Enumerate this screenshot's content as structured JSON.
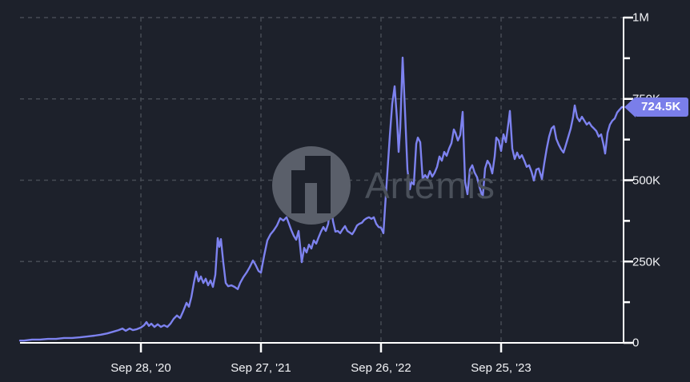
{
  "chart": {
    "watermark": {
      "brand": "Artemis"
    },
    "current_value_label": "724.5K",
    "colors": {
      "background": "#1d212b",
      "line": "#7d82ef",
      "badge": "#7a7eea",
      "grid": "#464b54",
      "axis": "#ffffff",
      "label_text": "#f2f3f6",
      "watermark_gray": "#5a5f6a"
    },
    "y_axis": {
      "side": "right",
      "ticks": [
        {
          "label": "1M",
          "v": 1000
        },
        {
          "label": "750K",
          "v": 750
        },
        {
          "label": "500K",
          "v": 500
        },
        {
          "label": "250K",
          "v": 250
        },
        {
          "label": "0",
          "v": 0
        }
      ],
      "minor_v": [
        875,
        625,
        375,
        125
      ]
    },
    "x_axis": {
      "ticks": [
        {
          "label": "Sep 28, '20",
          "t": 0.2003
        },
        {
          "label": "Sep 27, '21",
          "t": 0.3992
        },
        {
          "label": "Sep 26, '22",
          "t": 0.5981
        },
        {
          "label": "Sep 25, '23",
          "t": 0.7971
        }
      ]
    }
  },
  "chart_data": {
    "type": "line",
    "title": "",
    "unit": "K",
    "ylim": [
      0,
      1000
    ],
    "grid": true,
    "y_axis_side": "right",
    "x_tick_labels": [
      "Sep 28, '20",
      "Sep 27, '21",
      "Sep 26, '22",
      "Sep 25, '23"
    ],
    "last_value_k": 724.5,
    "series": [
      {
        "name": "value",
        "points": [
          [
            0,
            7
          ],
          [
            0.0066,
            7
          ],
          [
            0.0199,
            10
          ],
          [
            0.0332,
            10
          ],
          [
            0.0464,
            12
          ],
          [
            0.0597,
            12
          ],
          [
            0.0729,
            15
          ],
          [
            0.0862,
            15
          ],
          [
            0.0995,
            17
          ],
          [
            0.1127,
            20
          ],
          [
            0.1233,
            22
          ],
          [
            0.134,
            25
          ],
          [
            0.1446,
            29
          ],
          [
            0.1538,
            34
          ],
          [
            0.1631,
            39
          ],
          [
            0.1698,
            44
          ],
          [
            0.1751,
            37
          ],
          [
            0.1817,
            44
          ],
          [
            0.187,
            39
          ],
          [
            0.1936,
            42
          ],
          [
            0.2003,
            47
          ],
          [
            0.2056,
            54
          ],
          [
            0.2095,
            64
          ],
          [
            0.2135,
            52
          ],
          [
            0.2175,
            59
          ],
          [
            0.2228,
            49
          ],
          [
            0.2281,
            57
          ],
          [
            0.2334,
            49
          ],
          [
            0.2387,
            54
          ],
          [
            0.244,
            49
          ],
          [
            0.2493,
            59
          ],
          [
            0.2546,
            74
          ],
          [
            0.2599,
            84
          ],
          [
            0.2653,
            76
          ],
          [
            0.2706,
            98
          ],
          [
            0.2759,
            123
          ],
          [
            0.2798,
            111
          ],
          [
            0.2838,
            140
          ],
          [
            0.2878,
            182
          ],
          [
            0.2918,
            219
          ],
          [
            0.2957,
            189
          ],
          [
            0.2997,
            204
          ],
          [
            0.3037,
            184
          ],
          [
            0.3077,
            197
          ],
          [
            0.3117,
            177
          ],
          [
            0.3156,
            192
          ],
          [
            0.3196,
            172
          ],
          [
            0.3236,
            209
          ],
          [
            0.3276,
            322
          ],
          [
            0.3302,
            295
          ],
          [
            0.3329,
            319
          ],
          [
            0.3369,
            246
          ],
          [
            0.3408,
            184
          ],
          [
            0.3448,
            174
          ],
          [
            0.3501,
            177
          ],
          [
            0.3554,
            172
          ],
          [
            0.3607,
            165
          ],
          [
            0.3647,
            184
          ],
          [
            0.37,
            202
          ],
          [
            0.3753,
            216
          ],
          [
            0.3806,
            233
          ],
          [
            0.3859,
            253
          ],
          [
            0.3899,
            241
          ],
          [
            0.3952,
            221
          ],
          [
            0.3992,
            216
          ],
          [
            0.4045,
            268
          ],
          [
            0.4098,
            315
          ],
          [
            0.4151,
            334
          ],
          [
            0.4204,
            346
          ],
          [
            0.4257,
            361
          ],
          [
            0.431,
            383
          ],
          [
            0.4363,
            376
          ],
          [
            0.4416,
            386
          ],
          [
            0.4456,
            366
          ],
          [
            0.4496,
            346
          ],
          [
            0.4536,
            329
          ],
          [
            0.4576,
            317
          ],
          [
            0.4615,
            344
          ],
          [
            0.4668,
            248
          ],
          [
            0.4708,
            292
          ],
          [
            0.4748,
            278
          ],
          [
            0.4788,
            302
          ],
          [
            0.4827,
            290
          ],
          [
            0.4867,
            315
          ],
          [
            0.4907,
            305
          ],
          [
            0.4947,
            324
          ],
          [
            0.4987,
            342
          ],
          [
            0.5027,
            356
          ],
          [
            0.5066,
            344
          ],
          [
            0.5106,
            366
          ],
          [
            0.5146,
            428
          ],
          [
            0.5186,
            374
          ],
          [
            0.5225,
            342
          ],
          [
            0.5265,
            344
          ],
          [
            0.5305,
            337
          ],
          [
            0.5345,
            349
          ],
          [
            0.5385,
            359
          ],
          [
            0.5424,
            344
          ],
          [
            0.5464,
            339
          ],
          [
            0.5504,
            334
          ],
          [
            0.5544,
            346
          ],
          [
            0.5584,
            361
          ],
          [
            0.5623,
            366
          ],
          [
            0.5663,
            369
          ],
          [
            0.5703,
            378
          ],
          [
            0.5743,
            383
          ],
          [
            0.5782,
            386
          ],
          [
            0.5822,
            381
          ],
          [
            0.5862,
            386
          ],
          [
            0.5902,
            366
          ],
          [
            0.5942,
            356
          ],
          [
            0.5981,
            354
          ],
          [
            0.6021,
            337
          ],
          [
            0.6048,
            415
          ],
          [
            0.6088,
            526
          ],
          [
            0.6127,
            636
          ],
          [
            0.6167,
            735
          ],
          [
            0.6207,
            789
          ],
          [
            0.6247,
            686
          ],
          [
            0.6273,
            587
          ],
          [
            0.63,
            661
          ],
          [
            0.634,
            877
          ],
          [
            0.6379,
            710
          ],
          [
            0.6419,
            533
          ],
          [
            0.6459,
            472
          ],
          [
            0.6485,
            494
          ],
          [
            0.6525,
            487
          ],
          [
            0.6565,
            612
          ],
          [
            0.6592,
            631
          ],
          [
            0.6631,
            617
          ],
          [
            0.6671,
            504
          ],
          [
            0.6711,
            516
          ],
          [
            0.6751,
            506
          ],
          [
            0.6791,
            528
          ],
          [
            0.683,
            511
          ],
          [
            0.687,
            523
          ],
          [
            0.691,
            541
          ],
          [
            0.695,
            573
          ],
          [
            0.6989,
            560
          ],
          [
            0.7029,
            587
          ],
          [
            0.7069,
            575
          ],
          [
            0.7109,
            597
          ],
          [
            0.7149,
            614
          ],
          [
            0.7188,
            656
          ],
          [
            0.7215,
            646
          ],
          [
            0.7255,
            622
          ],
          [
            0.7294,
            639
          ],
          [
            0.7334,
            710
          ],
          [
            0.7374,
            495
          ],
          [
            0.7414,
            457
          ],
          [
            0.7454,
            533
          ],
          [
            0.7493,
            546
          ],
          [
            0.7533,
            523
          ],
          [
            0.7573,
            509
          ],
          [
            0.7613,
            479
          ],
          [
            0.7666,
            447
          ],
          [
            0.7706,
            536
          ],
          [
            0.7745,
            560
          ],
          [
            0.7785,
            548
          ],
          [
            0.7825,
            521
          ],
          [
            0.7865,
            573
          ],
          [
            0.7891,
            631
          ],
          [
            0.7931,
            622
          ],
          [
            0.7971,
            590
          ],
          [
            0.8011,
            641
          ],
          [
            0.805,
            617
          ],
          [
            0.809,
            673
          ],
          [
            0.8117,
            713
          ],
          [
            0.8156,
            597
          ],
          [
            0.8196,
            565
          ],
          [
            0.8236,
            585
          ],
          [
            0.8276,
            568
          ],
          [
            0.8316,
            577
          ],
          [
            0.8355,
            560
          ],
          [
            0.8395,
            541
          ],
          [
            0.8435,
            546
          ],
          [
            0.8475,
            526
          ],
          [
            0.8515,
            499
          ],
          [
            0.8554,
            533
          ],
          [
            0.8594,
            536
          ],
          [
            0.862,
            521
          ],
          [
            0.8647,
            504
          ],
          [
            0.8687,
            553
          ],
          [
            0.8727,
            597
          ],
          [
            0.8767,
            634
          ],
          [
            0.8806,
            659
          ],
          [
            0.8846,
            666
          ],
          [
            0.8886,
            627
          ],
          [
            0.8926,
            609
          ],
          [
            0.8966,
            595
          ],
          [
            0.9005,
            585
          ],
          [
            0.9045,
            609
          ],
          [
            0.9085,
            634
          ],
          [
            0.9125,
            659
          ],
          [
            0.9165,
            695
          ],
          [
            0.9191,
            730
          ],
          [
            0.9231,
            693
          ],
          [
            0.9271,
            681
          ],
          [
            0.931,
            695
          ],
          [
            0.935,
            683
          ],
          [
            0.939,
            671
          ],
          [
            0.943,
            678
          ],
          [
            0.947,
            666
          ],
          [
            0.9509,
            659
          ],
          [
            0.9549,
            651
          ],
          [
            0.9589,
            634
          ],
          [
            0.9629,
            641
          ],
          [
            0.9668,
            609
          ],
          [
            0.9695,
            582
          ],
          [
            0.9735,
            646
          ],
          [
            0.9775,
            671
          ],
          [
            0.9814,
            683
          ],
          [
            0.9854,
            690
          ],
          [
            0.9894,
            708
          ],
          [
            0.9934,
            717
          ],
          [
            0.9973,
            725
          ],
          [
            1,
            724.5
          ]
        ]
      }
    ]
  }
}
